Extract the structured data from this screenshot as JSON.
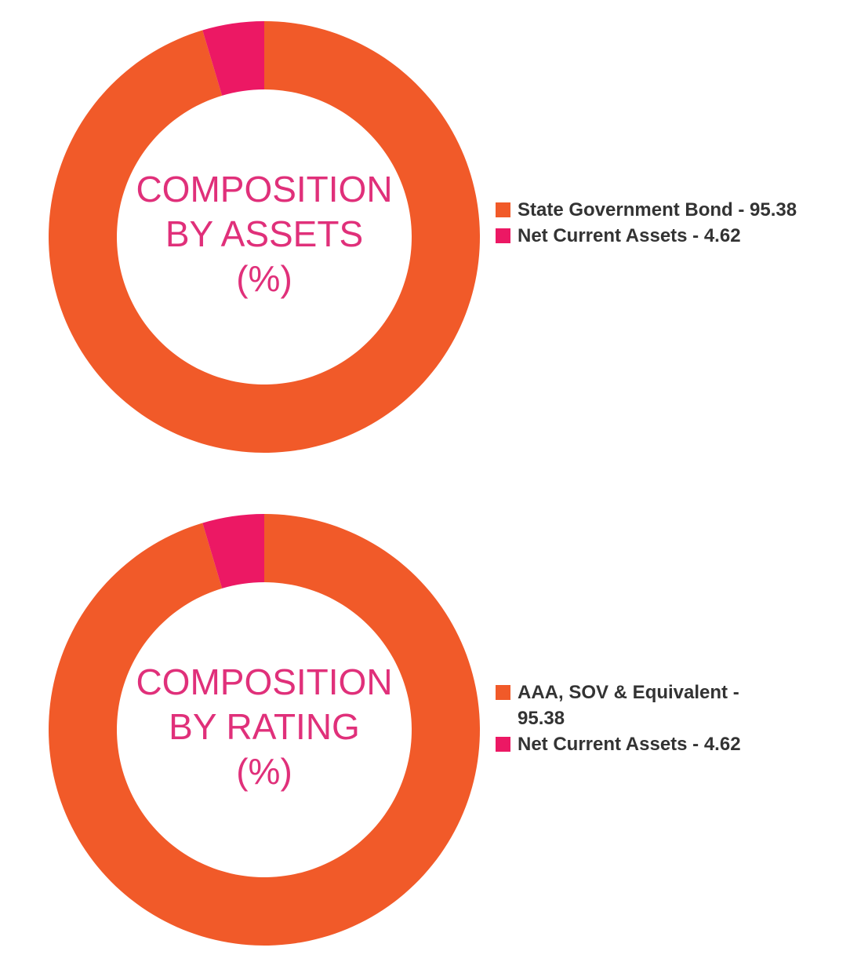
{
  "chart_data": [
    {
      "type": "donut",
      "title": [
        "COMPOSITION",
        "BY ASSETS",
        "(%)"
      ],
      "labels": [
        "State Government Bond - 95.38",
        "Net Current Assets - 4.62"
      ],
      "values": [
        95.38,
        4.62
      ],
      "colors": [
        "#f15a29",
        "#ec1864"
      ]
    },
    {
      "type": "donut",
      "title": [
        "COMPOSITION",
        "BY RATING",
        "(%)"
      ],
      "labels": [
        "AAA, SOV & Equivalent - 95.38",
        "Net Current Assets - 4.62"
      ],
      "values": [
        95.38,
        4.62
      ],
      "colors": [
        "#f15a29",
        "#ec1864"
      ]
    }
  ]
}
